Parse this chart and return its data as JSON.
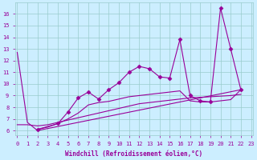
{
  "xlabel": "Windchill (Refroidissement éolien,°C)",
  "bg_color": "#cceeff",
  "grid_color": "#99cccc",
  "line_color": "#990099",
  "x_ticks": [
    0,
    1,
    2,
    3,
    4,
    5,
    6,
    7,
    8,
    9,
    10,
    11,
    12,
    13,
    14,
    15,
    16,
    17,
    18,
    19,
    20,
    21,
    22,
    23
  ],
  "y_ticks": [
    6,
    7,
    8,
    9,
    10,
    11,
    12,
    13,
    14,
    15,
    16
  ],
  "xlim": [
    -0.2,
    23.2
  ],
  "ylim": [
    5.6,
    17.0
  ],
  "lines": [
    {
      "x": [
        0,
        1,
        2,
        22
      ],
      "y": [
        12.7,
        6.7,
        6.0,
        9.5
      ],
      "marker": false
    },
    {
      "x": [
        0,
        1,
        2,
        3,
        4,
        5,
        6,
        7,
        8,
        9,
        10,
        11,
        12,
        13,
        14,
        15,
        16,
        17,
        18,
        19,
        20,
        21,
        22
      ],
      "y": [
        6.5,
        6.5,
        6.4,
        6.5,
        6.7,
        6.9,
        7.1,
        7.3,
        7.5,
        7.7,
        7.9,
        8.1,
        8.3,
        8.4,
        8.5,
        8.6,
        8.7,
        8.8,
        8.85,
        8.9,
        8.95,
        9.0,
        9.1
      ],
      "marker": false
    },
    {
      "x": [
        2,
        3,
        4,
        5,
        6,
        7,
        8,
        9,
        10,
        11,
        12,
        13,
        14,
        15,
        16,
        17,
        18,
        19,
        20,
        21,
        22
      ],
      "y": [
        6.1,
        6.3,
        6.6,
        7.0,
        7.5,
        8.2,
        8.4,
        8.5,
        8.7,
        8.9,
        9.0,
        9.1,
        9.2,
        9.3,
        9.4,
        8.55,
        8.45,
        8.45,
        8.55,
        8.65,
        9.5
      ],
      "marker": false
    },
    {
      "x": [
        2,
        4,
        5,
        6,
        7,
        8,
        9,
        10,
        11,
        12,
        13,
        14,
        15,
        16,
        17,
        18,
        19,
        20,
        21,
        22
      ],
      "y": [
        6.1,
        6.6,
        7.6,
        8.8,
        9.3,
        8.7,
        9.5,
        10.1,
        11.0,
        11.5,
        11.3,
        10.6,
        10.5,
        13.8,
        9.0,
        8.55,
        8.45,
        16.5,
        13.0,
        9.5
      ],
      "marker": true
    }
  ]
}
